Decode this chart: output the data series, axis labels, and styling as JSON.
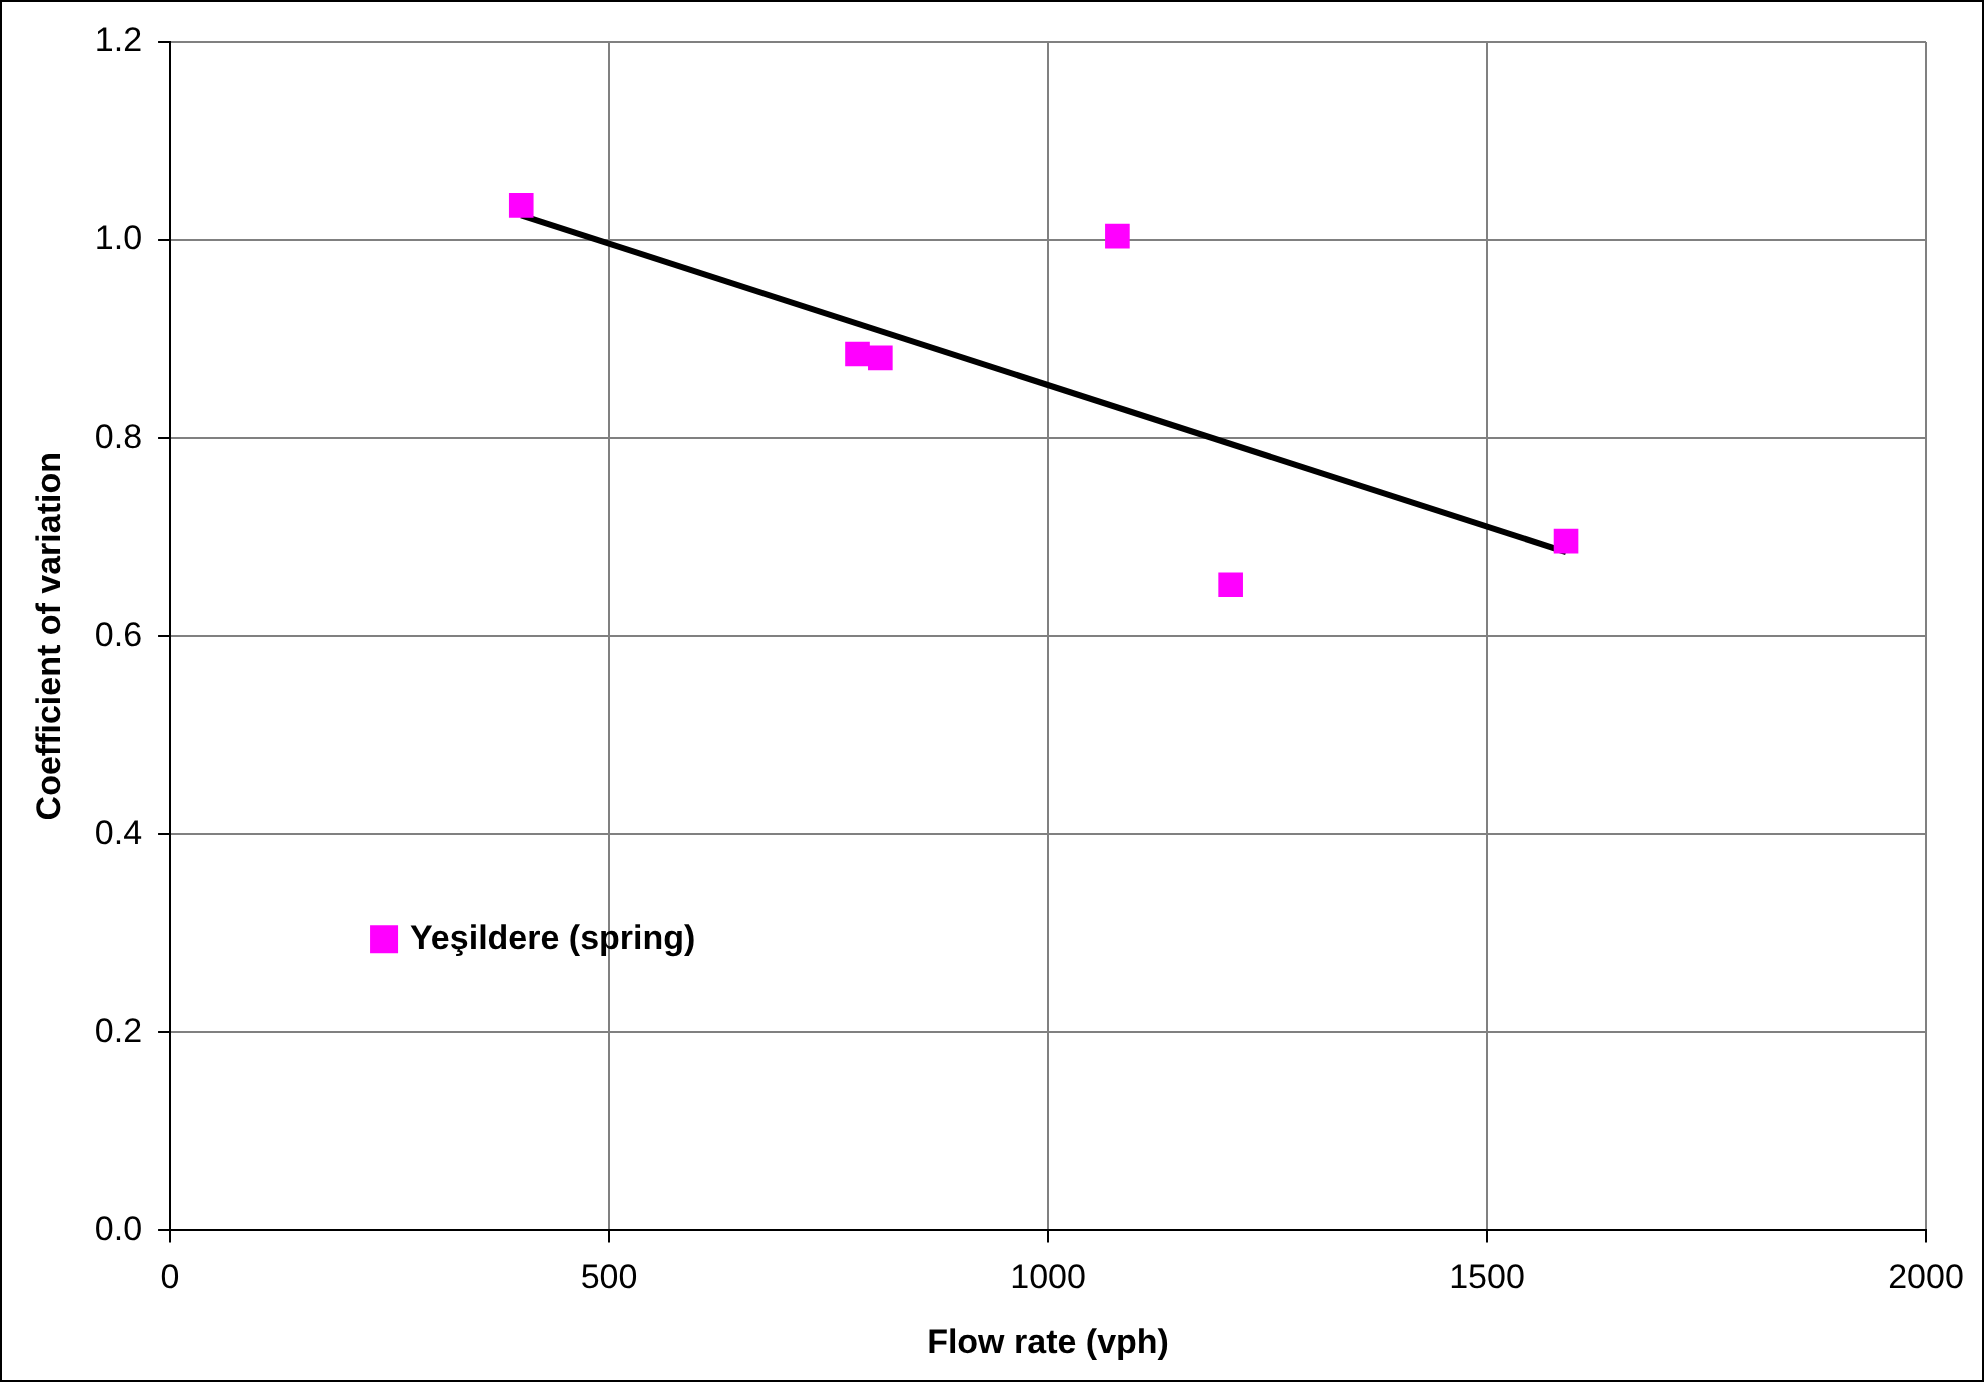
{
  "chart_data": {
    "type": "scatter",
    "xlabel": "Flow rate (vph)",
    "ylabel": "Coefficient of variation",
    "series": [
      {
        "name": "Yeşildere (spring)",
        "color": "#ff00ff",
        "marker": "square",
        "x": [
          400,
          783,
          809,
          1079,
          1208,
          1590
        ],
        "values": [
          1.035,
          0.885,
          0.881,
          1.004,
          0.652,
          0.696
        ]
      },
      {
        "type": "line",
        "color": "#000000",
        "line_style": "solid",
        "marker": "none",
        "x": [
          400,
          1590
        ],
        "values": [
          1.025,
          0.685
        ]
      }
    ],
    "xlim": [
      0,
      2000
    ],
    "xticks": [
      0,
      500,
      1000,
      1500,
      2000
    ],
    "ylim": [
      0,
      1.2
    ],
    "yticks": [
      {
        "value": 0,
        "label": "0.0"
      },
      {
        "value": 0.2,
        "label": "0.2"
      },
      {
        "value": 0.4,
        "label": "0.4"
      },
      {
        "value": 0.6,
        "label": "0.6"
      },
      {
        "value": 0.8,
        "label": "0.8"
      },
      {
        "value": 1,
        "label": "1.0"
      },
      {
        "value": 1.2,
        "label": "1.2"
      }
    ],
    "grid": true,
    "legend": "bottom left"
  }
}
